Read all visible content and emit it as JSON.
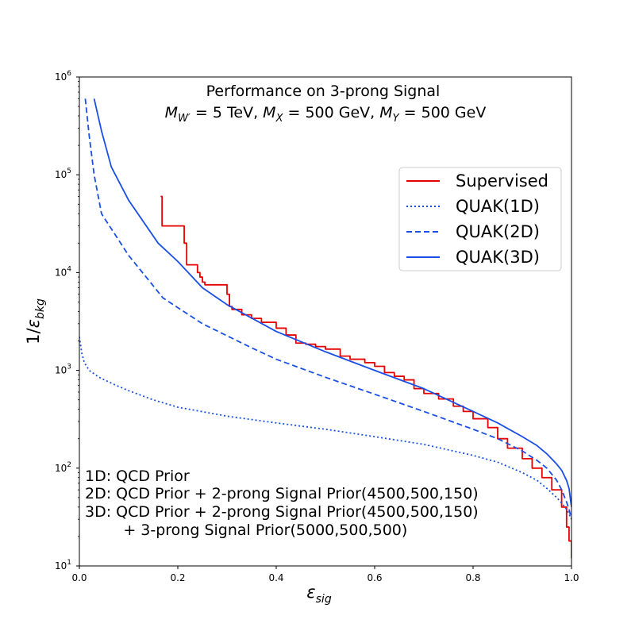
{
  "chart_data": {
    "type": "line",
    "title": "Performance on 3-prong Signal",
    "subtitle_parts": {
      "m_w_base": "M",
      "m_w_sub": "W′",
      "m_w_value": " = 5 TeV, ",
      "m_x_base": "M",
      "m_x_sub": "X",
      "m_x_value": " = 500 GeV, ",
      "m_y_base": "M",
      "m_y_sub": "Y",
      "m_y_value": " = 500 GeV"
    },
    "xlabel_base": "ε",
    "xlabel_sub": "sig",
    "ylabel_prefix": "1/",
    "ylabel_base": "ε",
    "ylabel_sub": "bkg",
    "xlim": [
      0.0,
      1.0
    ],
    "ylim": [
      10,
      1000000
    ],
    "yscale": "log",
    "x_ticks": [
      "0.0",
      "0.2",
      "0.4",
      "0.6",
      "0.8",
      "1.0"
    ],
    "y_tick_base": "10",
    "y_tick_exponents": [
      "1",
      "2",
      "3",
      "4",
      "5",
      "6"
    ],
    "grid": false,
    "legend_position": "upper-right",
    "annotations": [
      "1D: QCD Prior",
      "2D: QCD Prior + 2-prong Signal Prior(4500,500,150)",
      "3D: QCD Prior + 2-prong Signal Prior(4500,500,150)",
      "        + 3-prong Signal Prior(5000,500,500)"
    ],
    "series": [
      {
        "name": "Supervised",
        "color": "#e60000",
        "style": "solid",
        "step": true,
        "x": [
          0.165,
          0.168,
          0.213,
          0.218,
          0.222,
          0.24,
          0.245,
          0.25,
          0.255,
          0.3,
          0.305,
          0.31,
          0.33,
          0.35,
          0.37,
          0.4,
          0.42,
          0.44,
          0.46,
          0.48,
          0.5,
          0.53,
          0.55,
          0.58,
          0.6,
          0.62,
          0.64,
          0.66,
          0.68,
          0.7,
          0.73,
          0.76,
          0.78,
          0.8,
          0.83,
          0.85,
          0.87,
          0.9,
          0.92,
          0.94,
          0.96,
          0.98,
          0.99,
          0.995,
          1.0
        ],
        "y": [
          60000,
          30000,
          20000,
          12000,
          12000,
          10000,
          9000,
          8000,
          7500,
          6000,
          4500,
          4200,
          3700,
          3400,
          3100,
          2700,
          2300,
          1900,
          1850,
          1750,
          1650,
          1400,
          1300,
          1200,
          1100,
          950,
          870,
          800,
          650,
          580,
          510,
          430,
          380,
          320,
          260,
          200,
          160,
          125,
          100,
          80,
          60,
          40,
          25,
          18,
          12
        ]
      },
      {
        "name": "QUAK(1D)",
        "color": "#1a4fe6",
        "style": "dotted",
        "step": false,
        "x": [
          0.0,
          0.005,
          0.01,
          0.02,
          0.04,
          0.07,
          0.1,
          0.15,
          0.2,
          0.3,
          0.4,
          0.5,
          0.6,
          0.7,
          0.8,
          0.85,
          0.9,
          0.93,
          0.95,
          0.97,
          0.98,
          0.99,
          0.995,
          1.0
        ],
        "y": [
          2200,
          1500,
          1200,
          1000,
          850,
          720,
          620,
          500,
          420,
          340,
          290,
          250,
          210,
          175,
          135,
          115,
          90,
          75,
          62,
          50,
          44,
          38,
          34,
          30
        ]
      },
      {
        "name": "QUAK(2D)",
        "color": "#1a4fe6",
        "style": "dashed",
        "step": false,
        "x": [
          0.012,
          0.02,
          0.03,
          0.045,
          0.1,
          0.17,
          0.25,
          0.35,
          0.4,
          0.5,
          0.6,
          0.7,
          0.8,
          0.85,
          0.9,
          0.93,
          0.95,
          0.97,
          0.98,
          0.99,
          0.995,
          1.0
        ],
        "y": [
          600000,
          250000,
          100000,
          40000,
          15000,
          5500,
          3000,
          1700,
          1300,
          850,
          570,
          380,
          250,
          200,
          150,
          120,
          100,
          75,
          60,
          45,
          38,
          30
        ]
      },
      {
        "name": "QUAK(3D)",
        "color": "#1a4fe6",
        "style": "solid",
        "step": false,
        "x": [
          0.03,
          0.045,
          0.065,
          0.1,
          0.16,
          0.2,
          0.25,
          0.3,
          0.4,
          0.5,
          0.6,
          0.7,
          0.8,
          0.85,
          0.9,
          0.93,
          0.95,
          0.97,
          0.98,
          0.99,
          0.995,
          1.0
        ],
        "y": [
          600000,
          280000,
          120000,
          55000,
          20000,
          13000,
          7000,
          4700,
          2500,
          1550,
          1000,
          650,
          380,
          290,
          210,
          170,
          140,
          110,
          95,
          75,
          62,
          40
        ]
      }
    ]
  }
}
